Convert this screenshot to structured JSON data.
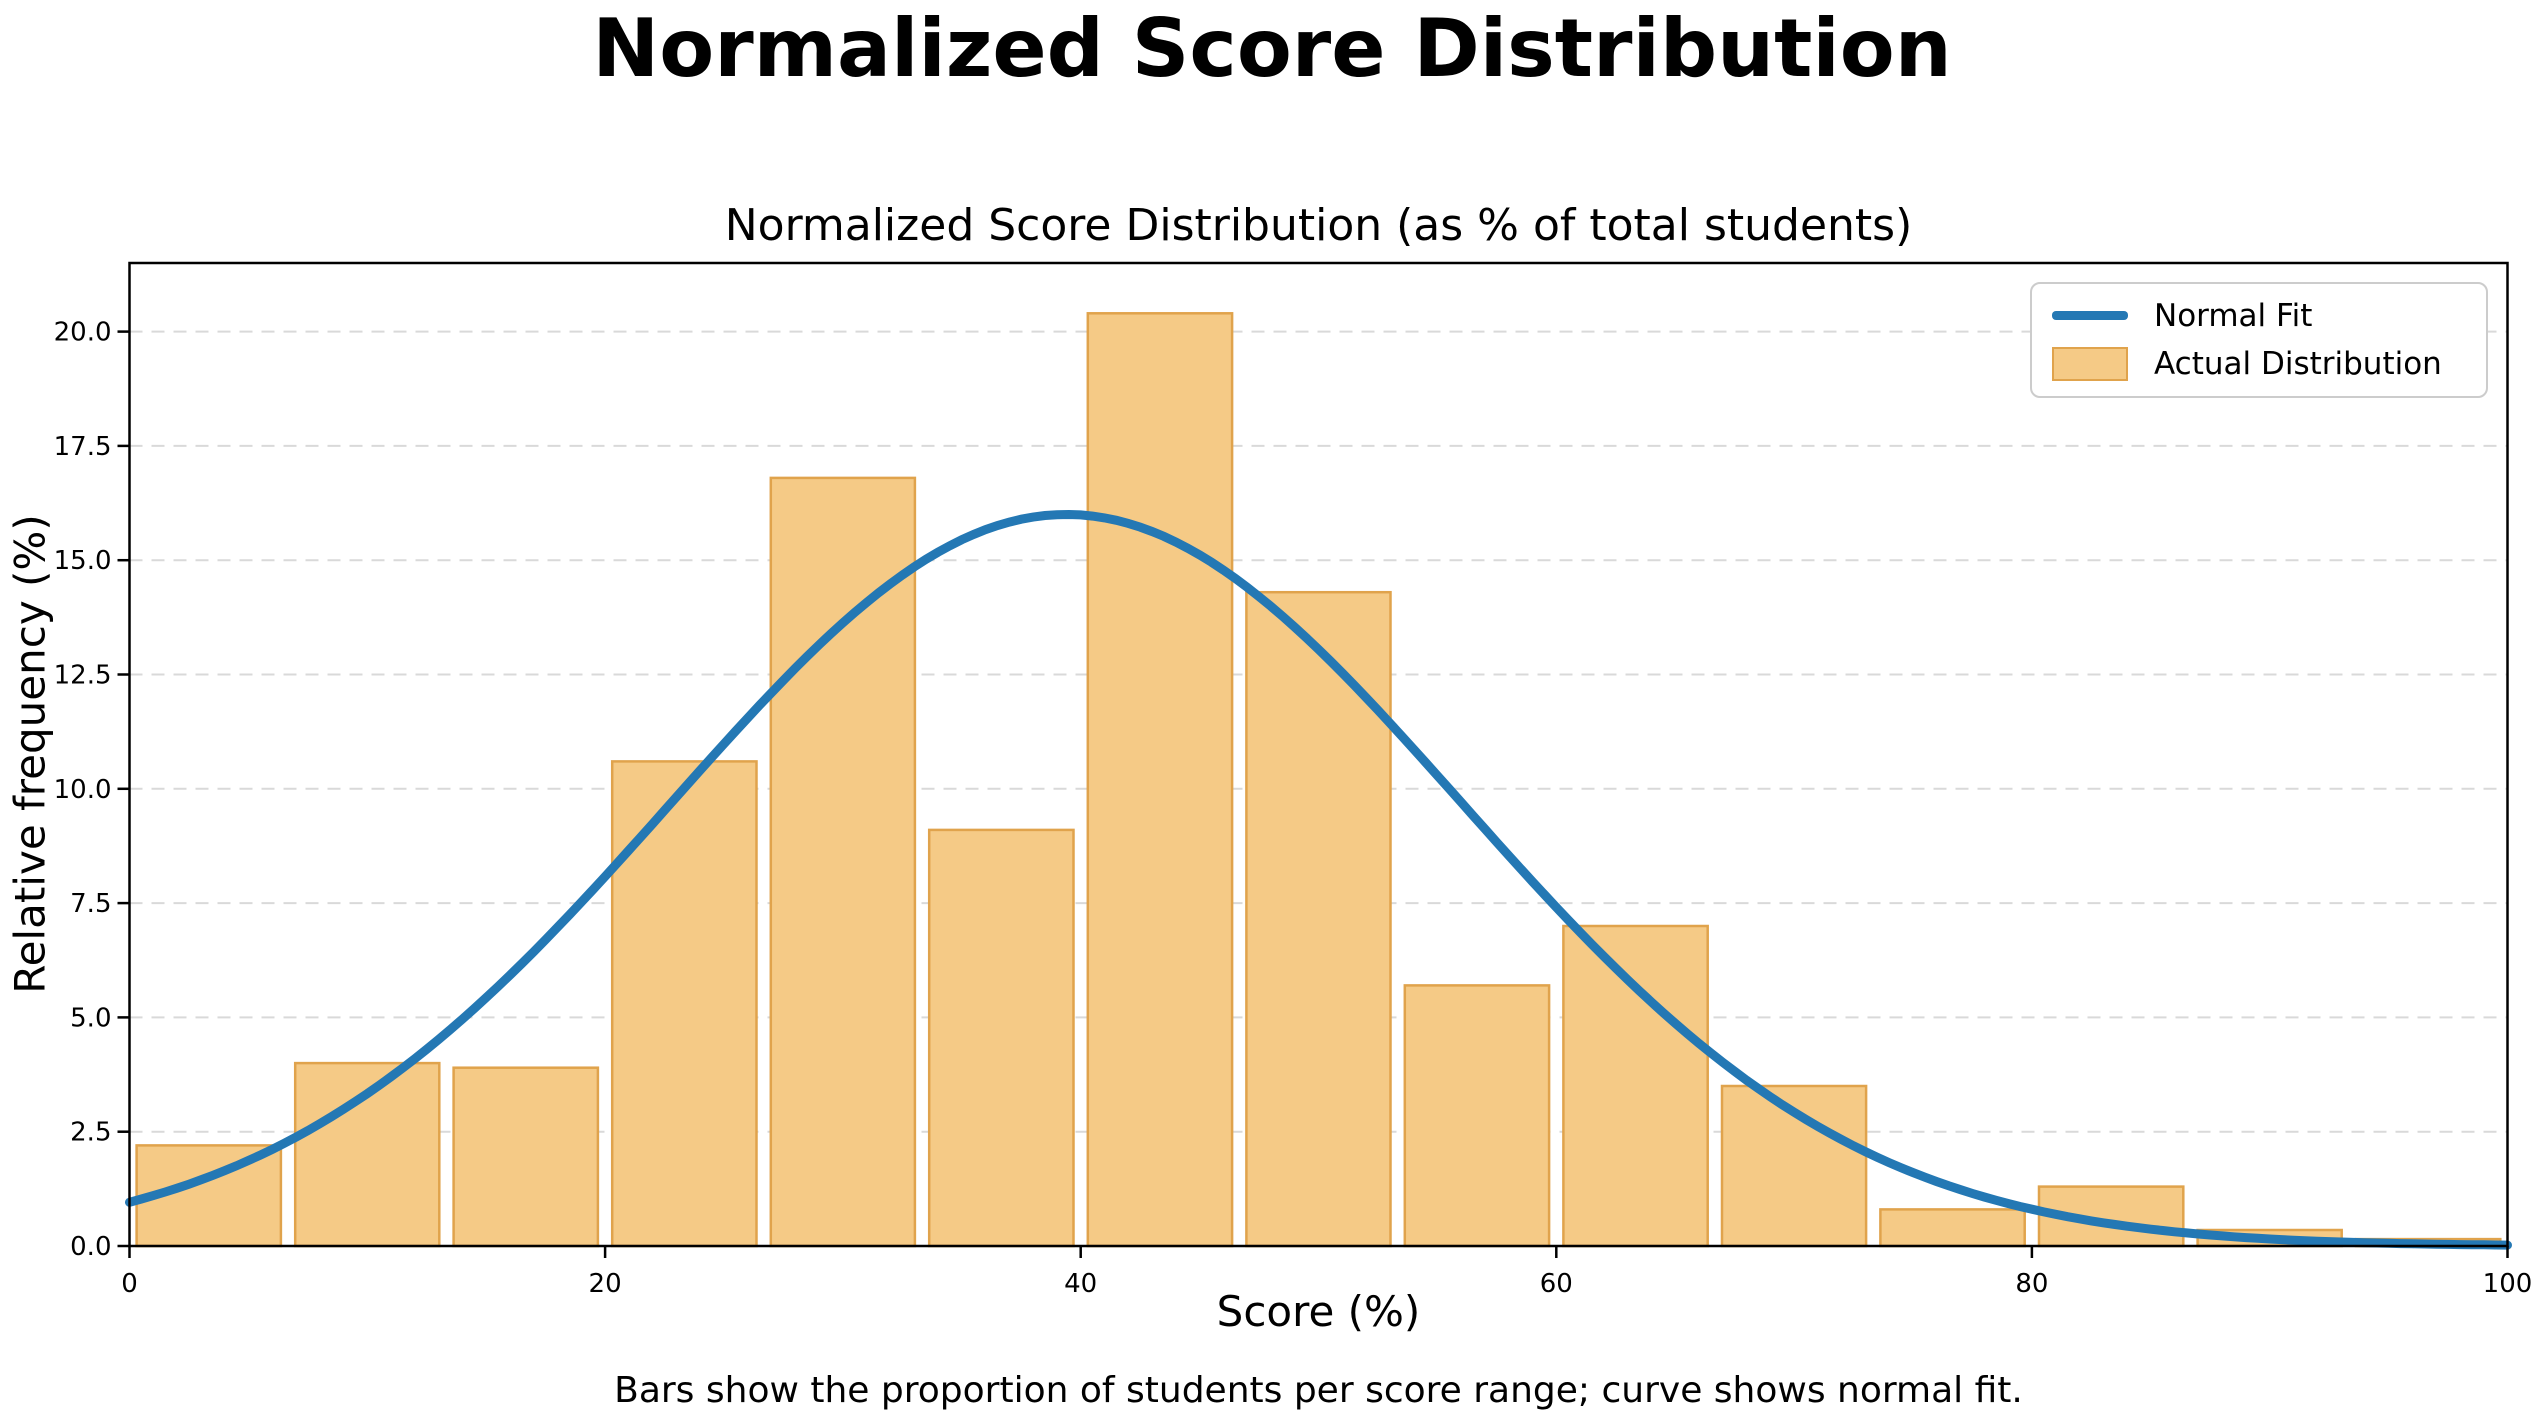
{
  "page": {
    "title": "Normalized Score Distribution",
    "caption": "Bars show the proportion of students per score range; curve shows normal fit."
  },
  "chart_data": {
    "type": "bar",
    "subtype": "histogram-with-normal-fit-line",
    "title": "Normalized Score Distribution (as % of total students)",
    "xlabel": "Score (%)",
    "ylabel": "Relative frequency (%)",
    "xlim": [
      0,
      100
    ],
    "ylim": [
      0,
      21.5
    ],
    "x_ticks": [
      0,
      20,
      40,
      60,
      80,
      100
    ],
    "y_ticks": [
      0,
      2.5,
      5,
      7.5,
      10,
      12.5,
      15,
      17.5,
      20
    ],
    "grid": {
      "axis": "y",
      "style": "dashed",
      "color": "#d9d9d9"
    },
    "legend": {
      "position": "upper right",
      "entries": [
        {
          "label": "Normal Fit",
          "type": "line",
          "color": "#2478b4"
        },
        {
          "label": "Actual Distribution",
          "type": "patch",
          "fill": "#f5ca86",
          "edge": "#e0a34c"
        }
      ]
    },
    "bars": {
      "name": "Actual Distribution",
      "bin_edges": [
        0,
        6.67,
        13.33,
        20,
        26.67,
        33.33,
        40,
        46.67,
        53.33,
        60,
        66.67,
        73.33,
        80,
        86.67,
        93.33,
        100
      ],
      "values": [
        2.2,
        4.0,
        3.9,
        10.6,
        16.8,
        9.1,
        20.4,
        14.3,
        5.7,
        7.0,
        3.5,
        0.8,
        1.3,
        0.35,
        0.15
      ],
      "fill": "#f5ca86",
      "edge": "#e0a34c",
      "rwidth": 0.91
    },
    "line": {
      "name": "Normal Fit",
      "model": "gaussian",
      "mean": 39.4,
      "std": 16.6,
      "peak": 16.0,
      "color": "#2478b4"
    }
  }
}
